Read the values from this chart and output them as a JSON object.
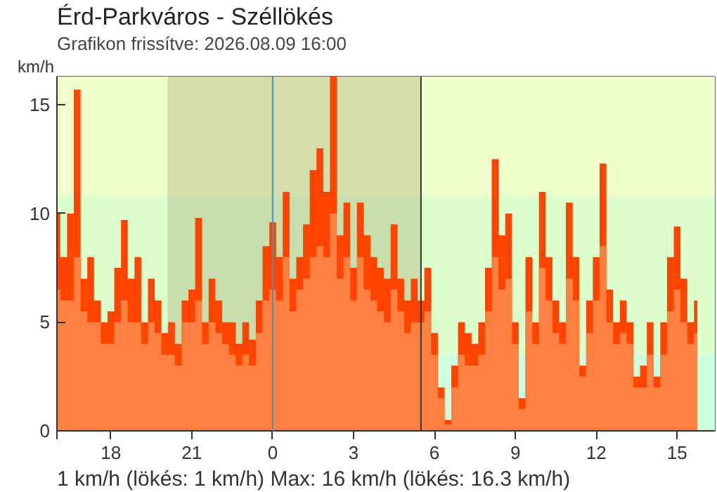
{
  "chart_data": {
    "type": "area",
    "title": "Érd-Parkváros - Széllökés",
    "subtitle": "Grafikon frissítve: 2026.08.09 16:00",
    "ylabel": "km/h",
    "annotations": [
      "1 km/h  (lökés: 1 km/h)  Max: 16 km/h  (lökés: 16.3 km/h)"
    ],
    "x": [
      "2026-08-08T16:00",
      "2026-08-08T16:15",
      "2026-08-08T16:30",
      "2026-08-08T16:45",
      "2026-08-08T17:00",
      "2026-08-08T17:15",
      "2026-08-08T17:30",
      "2026-08-08T17:45",
      "2026-08-08T18:00",
      "2026-08-08T18:15",
      "2026-08-08T18:30",
      "2026-08-08T18:45",
      "2026-08-08T19:00",
      "2026-08-08T19:15",
      "2026-08-08T19:30",
      "2026-08-08T19:45",
      "2026-08-08T20:00",
      "2026-08-08T20:15",
      "2026-08-08T20:30",
      "2026-08-08T20:45",
      "2026-08-08T21:00",
      "2026-08-08T21:15",
      "2026-08-08T21:30",
      "2026-08-08T21:45",
      "2026-08-08T22:00",
      "2026-08-08T22:15",
      "2026-08-08T22:30",
      "2026-08-08T22:45",
      "2026-08-08T23:00",
      "2026-08-08T23:15",
      "2026-08-08T23:30",
      "2026-08-08T23:45",
      "2026-08-09T00:00",
      "2026-08-09T00:15",
      "2026-08-09T00:30",
      "2026-08-09T00:45",
      "2026-08-09T01:00",
      "2026-08-09T01:15",
      "2026-08-09T01:30",
      "2026-08-09T01:45",
      "2026-08-09T02:00",
      "2026-08-09T02:15",
      "2026-08-09T02:30",
      "2026-08-09T02:45",
      "2026-08-09T03:00",
      "2026-08-09T03:15",
      "2026-08-09T03:30",
      "2026-08-09T03:45",
      "2026-08-09T04:00",
      "2026-08-09T04:15",
      "2026-08-09T04:30",
      "2026-08-09T04:45",
      "2026-08-09T05:00",
      "2026-08-09T05:15",
      "2026-08-09T05:30",
      "2026-08-09T05:45",
      "2026-08-09T06:00",
      "2026-08-09T06:15",
      "2026-08-09T06:30",
      "2026-08-09T06:45",
      "2026-08-09T07:00",
      "2026-08-09T07:15",
      "2026-08-09T07:30",
      "2026-08-09T07:45",
      "2026-08-09T08:00",
      "2026-08-09T08:15",
      "2026-08-09T08:30",
      "2026-08-09T08:45",
      "2026-08-09T09:00",
      "2026-08-09T09:15",
      "2026-08-09T09:30",
      "2026-08-09T09:45",
      "2026-08-09T10:00",
      "2026-08-09T10:15",
      "2026-08-09T10:30",
      "2026-08-09T10:45",
      "2026-08-09T11:00",
      "2026-08-09T11:15",
      "2026-08-09T11:30",
      "2026-08-09T11:45",
      "2026-08-09T12:00",
      "2026-08-09T12:15",
      "2026-08-09T12:30",
      "2026-08-09T12:45",
      "2026-08-09T13:00",
      "2026-08-09T13:15",
      "2026-08-09T13:30",
      "2026-08-09T13:45",
      "2026-08-09T14:00",
      "2026-08-09T14:15",
      "2026-08-09T14:30",
      "2026-08-09T14:45",
      "2026-08-09T15:00",
      "2026-08-09T15:15",
      "2026-08-09T15:30",
      "2026-08-09T15:45"
    ],
    "series": [
      {
        "color": "#ff4400",
        "values": [
          10,
          8,
          10,
          15.7,
          7,
          8,
          6,
          5,
          5.5,
          7.5,
          9.7,
          7,
          8,
          5,
          7,
          6,
          4.5,
          5,
          4,
          6,
          6.5,
          9.8,
          5,
          7,
          6,
          5,
          5,
          4,
          5,
          4.2,
          6,
          8.5,
          9.6,
          8,
          11,
          7,
          8,
          9.5,
          12,
          13,
          11,
          16.3,
          9,
          10.5,
          7.5,
          10.5,
          9,
          8,
          7.5,
          7,
          9.5,
          7,
          6,
          7,
          6,
          7.5,
          4.5,
          2,
          0.5,
          3,
          5,
          4.5,
          4,
          5,
          7.5,
          12.5,
          9,
          10,
          5,
          1.5,
          8,
          5,
          11,
          8,
          6,
          5,
          10.5,
          8,
          3,
          6,
          8,
          12.3,
          6.5,
          5,
          6,
          5,
          2.5,
          3,
          5,
          2.5,
          5,
          8,
          9.4,
          7,
          5,
          6
        ]
      },
      {
        "color": "#ff8040",
        "values": [
          6.5,
          6,
          6,
          8,
          5.5,
          5,
          5,
          4,
          4,
          5,
          6,
          5,
          5,
          4,
          5,
          4.5,
          3.5,
          3.5,
          3,
          5,
          5,
          6,
          4,
          5,
          4.5,
          4,
          3.5,
          3,
          3.5,
          3,
          4.5,
          6,
          6.5,
          6,
          8,
          5.5,
          6.5,
          7,
          8,
          8.5,
          8,
          10,
          7,
          8,
          6,
          8,
          6.5,
          6,
          5.5,
          5,
          6.5,
          5.5,
          4.5,
          5,
          5,
          5.5,
          3.5,
          1.5,
          0.3,
          2,
          3.5,
          3,
          3,
          3.5,
          5.5,
          8,
          6.5,
          7,
          4,
          1,
          5.5,
          4,
          7.5,
          6,
          4.5,
          4,
          7,
          6,
          2.5,
          4.5,
          6,
          8.5,
          5,
          4,
          4.5,
          4,
          2,
          2,
          3.5,
          2,
          3.5,
          5.5,
          6.5,
          5,
          4,
          4.5
        ]
      }
    ],
    "xlim": [
      "2026-08-08T16:00",
      "2026-08-09T16:24"
    ],
    "ylim": [
      0,
      16.3
    ],
    "xticks": [
      {
        "value": "2026-08-08T16:00",
        "label": null
      },
      {
        "value": "2026-08-08T18:00",
        "label": "18"
      },
      {
        "value": "2026-08-08T21:00",
        "label": "21"
      },
      {
        "value": "2026-08-09T00:00",
        "label": "0"
      },
      {
        "value": "2026-08-09T03:00",
        "label": "3"
      },
      {
        "value": "2026-08-09T06:00",
        "label": "6"
      },
      {
        "value": "2026-08-09T09:00",
        "label": "9"
      },
      {
        "value": "2026-08-09T12:00",
        "label": "12"
      },
      {
        "value": "2026-08-09T15:00",
        "label": "15"
      }
    ],
    "yticks": [
      0,
      5,
      10,
      15
    ],
    "bands": [
      {
        "axis": "y",
        "from": 0,
        "to": 3.5,
        "color": "#ccffdd",
        "label": null
      },
      {
        "axis": "y",
        "from": 3.5,
        "to": 10.8,
        "color": "#ddffcc",
        "label": null
      },
      {
        "axis": "y",
        "from": 10.8,
        "to": 16.3,
        "color": "#eeffcc",
        "label": null
      },
      {
        "axis": "x",
        "from": "2026-08-08T20:06",
        "to": "2026-08-09T05:30",
        "color": "#a0a070",
        "label": null
      }
    ],
    "ref_lines": [
      {
        "axis": "x",
        "value": "2026-08-09T00:00",
        "color": "#4a90c0",
        "label": null
      },
      {
        "axis": "x",
        "value": "2026-08-09T05:30",
        "color": "#333333",
        "label": null
      }
    ]
  }
}
